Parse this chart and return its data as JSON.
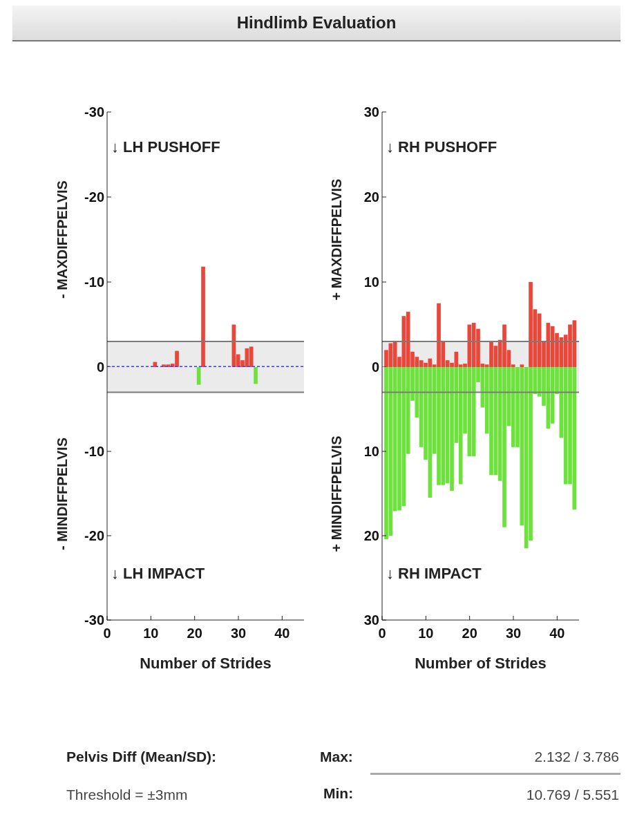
{
  "chart_data": [
    {
      "type": "bar",
      "title": "Hindlimb Evaluation",
      "ylabel": "- MAXDIFFPELVIS",
      "tick_labels": "y",
      "annotations": [
        "↓ LH PUSHOFF"
      ],
      "series": [
        {
          "color": "#e8473a",
          "x": [
            11,
            13,
            14,
            15,
            16,
            22,
            29,
            30,
            31,
            32,
            33
          ],
          "values": [
            -0.6,
            -0.3,
            -0.3,
            -0.4,
            -1.9,
            -11.8,
            -5.0,
            -1.5,
            -0.8,
            -2.2,
            -2.4
          ]
        }
      ],
      "xlim": [
        0,
        45
      ],
      "xticks": [
        0,
        10,
        20,
        30,
        40
      ],
      "ylim": [
        0,
        -30
      ],
      "yticks": [
        -30,
        -20,
        -10,
        0
      ],
      "ref_lines": [
        {
          "axis": "y",
          "value": -3,
          "color": "#7a7a7a"
        },
        {
          "axis": "y",
          "value": 0,
          "color": "#3a3aff",
          "line_style": "dotted"
        }
      ],
      "bands": [
        {
          "axis": "y",
          "from": 0,
          "to": -3,
          "color": "#ebebeb"
        }
      ]
    },
    {
      "type": "bar",
      "ylabel": "- MINDIFFPELVIS",
      "xlabel": "Number of Strides",
      "annotations": [
        "↓ LH IMPACT"
      ],
      "series": [
        {
          "color": "#6ee23c",
          "x": [
            21,
            34
          ],
          "values": [
            -2.1,
            -2.0
          ]
        }
      ],
      "xlim": [
        0,
        45
      ],
      "xticks": [
        0,
        10,
        20,
        30,
        40
      ],
      "ylim": [
        -30,
        0
      ],
      "yticks": [
        -10,
        -20,
        -30
      ],
      "ref_lines": [
        {
          "axis": "y",
          "value": -3,
          "color": "#7a7a7a"
        }
      ],
      "bands": [
        {
          "axis": "y",
          "from": 0,
          "to": -3,
          "color": "#ebebeb"
        }
      ]
    },
    {
      "type": "bar",
      "ylabel": "+ MAXDIFFPELVIS",
      "tick_labels": "y",
      "annotations": [
        "↓ RH PUSHOFF"
      ],
      "series": [
        {
          "color": "#e8473a",
          "x": [
            1,
            2,
            3,
            4,
            5,
            6,
            7,
            8,
            9,
            10,
            11,
            12,
            13,
            14,
            15,
            16,
            17,
            18,
            19,
            20,
            21,
            22,
            23,
            24,
            25,
            26,
            27,
            28,
            29,
            30,
            32,
            34,
            35,
            36,
            37,
            38,
            39,
            40,
            41,
            42,
            43,
            44
          ],
          "values": [
            2.0,
            2.8,
            3.0,
            1.2,
            6.0,
            6.5,
            1.8,
            1.2,
            0.8,
            0.5,
            1.0,
            0.3,
            7.5,
            3.0,
            0.8,
            0.5,
            1.8,
            0.3,
            0.4,
            5.0,
            5.2,
            4.5,
            0.4,
            0.3,
            3.0,
            2.5,
            3.2,
            5.0,
            2.0,
            0.3,
            0.3,
            10.0,
            6.8,
            6.3,
            3.0,
            5.2,
            4.8,
            4.0,
            3.5,
            3.8,
            5.0,
            5.5
          ]
        }
      ],
      "xlim": [
        0,
        45
      ],
      "xticks": [
        0,
        10,
        20,
        30,
        40
      ],
      "ylim": [
        0,
        30
      ],
      "yticks": [
        0,
        10,
        20,
        30
      ],
      "ref_lines": [
        {
          "axis": "y",
          "value": 3,
          "color": "#7a7a7a"
        }
      ],
      "bands": [
        {
          "axis": "y",
          "from": 0,
          "to": 3,
          "color": "#ebebeb"
        }
      ]
    },
    {
      "type": "bar",
      "ylabel": "+ MINDIFFPELVIS",
      "xlabel": "Number of Strides",
      "annotations": [
        "↓ RH IMPACT"
      ],
      "series": [
        {
          "color": "#6ee23c",
          "x": [
            1,
            2,
            3,
            4,
            5,
            6,
            7,
            8,
            9,
            10,
            11,
            12,
            13,
            14,
            15,
            16,
            17,
            18,
            19,
            20,
            21,
            22,
            23,
            24,
            25,
            26,
            27,
            28,
            29,
            30,
            31,
            32,
            33,
            34,
            35,
            36,
            37,
            38,
            39,
            40,
            41,
            42,
            43,
            44
          ],
          "values": [
            20.4,
            20.0,
            17.1,
            17.0,
            16.5,
            10.3,
            4.0,
            6.0,
            9.5,
            11.0,
            15.5,
            10.3,
            14.0,
            14.0,
            13.8,
            14.7,
            9.0,
            13.9,
            7.9,
            10.6,
            10.6,
            1.8,
            4.8,
            7.9,
            12.8,
            12.8,
            13.5,
            19.0,
            7.0,
            9.5,
            9.5,
            18.8,
            21.5,
            20.6,
            3.2,
            3.5,
            4.6,
            7.3,
            6.7,
            3.2,
            8.4,
            13.9,
            13.9,
            16.9
          ]
        }
      ],
      "xlim": [
        0,
        45
      ],
      "xticks": [
        0,
        10,
        20,
        30,
        40
      ],
      "ylim": [
        30,
        0
      ],
      "yticks": [
        10,
        20,
        30
      ],
      "ref_lines": [
        {
          "axis": "y",
          "value": 3,
          "color": "#7a7a7a"
        }
      ],
      "bands": [
        {
          "axis": "y",
          "from": 0,
          "to": 3,
          "color": "#ebebeb"
        }
      ]
    },
    {
      "type": "other",
      "annotations": [
        "Pelvis Diff (Mean/SD):",
        "Max:",
        "2.132 / 3.786",
        "Threshold = ±3mm",
        "Min:",
        "10.769 / 5.551"
      ]
    }
  ]
}
